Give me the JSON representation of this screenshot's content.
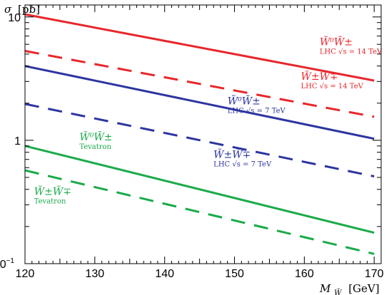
{
  "chart_data": {
    "type": "line",
    "x_axis": {
      "label_symbol": "M",
      "label_subscript": "W̃",
      "label_unit": "[GeV]",
      "ticks": [
        "120",
        "130",
        "140",
        "150",
        "160",
        "170"
      ],
      "range": [
        120,
        171
      ]
    },
    "y_axis": {
      "label_symbol": "σ",
      "label_unit": "[pb]",
      "scale": "log",
      "ticks": [
        {
          "value": 0.1,
          "label": "10",
          "sup": "−1"
        },
        {
          "value": 1,
          "label": "1",
          "sup": ""
        },
        {
          "value": 10,
          "label": "10",
          "sup": ""
        }
      ],
      "range": [
        0.1,
        12.5
      ]
    },
    "grid": false,
    "legend": "none",
    "series": [
      {
        "color": "#e8262b",
        "dash": "solid",
        "x": [
          120,
          170
        ],
        "y": [
          10.5,
          3.05
        ]
      },
      {
        "color": "#e8262b",
        "dash": "dashed",
        "x": [
          120,
          170
        ],
        "y": [
          5.3,
          1.55
        ]
      },
      {
        "color": "#2d35a0",
        "dash": "solid",
        "x": [
          120,
          170
        ],
        "y": [
          4.0,
          1.03
        ]
      },
      {
        "color": "#2d35a0",
        "dash": "dashed",
        "x": [
          120,
          170
        ],
        "y": [
          1.97,
          0.51
        ]
      },
      {
        "color": "#1aab4a",
        "dash": "solid",
        "x": [
          120,
          170
        ],
        "y": [
          0.9,
          0.178
        ]
      },
      {
        "color": "#1aab4a",
        "dash": "dashed",
        "x": [
          120,
          170
        ],
        "y": [
          0.57,
          0.12
        ]
      }
    ],
    "annotations": [
      {
        "main": "W̃⁰W̃±",
        "sub": "LHC √s = 14 TeV",
        "color": "#e8262b",
        "x": 162.2,
        "y": 5.9
      },
      {
        "main": "W̃±W̃∓",
        "sub": "LHC √s = 14 TeV",
        "color": "#e8262b",
        "x": 159.5,
        "y": 3.1
      },
      {
        "main": "W̃⁰W̃±",
        "sub": "LHC √s = 7 TeV",
        "color": "#2d35a0",
        "x": 149.0,
        "y": 1.95
      },
      {
        "main": "W̃±W̃∓",
        "sub": "LHC √s = 7 TeV",
        "color": "#2d35a0",
        "x": 147.0,
        "y": 0.72
      },
      {
        "main": "W̃⁰W̃±",
        "sub": "Tevatron",
        "color": "#1aab4a",
        "x": 127.8,
        "y": 1.0
      },
      {
        "main": "W̃±W̃∓",
        "sub": "Tevatron",
        "color": "#1aab4a",
        "x": 121.3,
        "y": 0.36
      }
    ]
  }
}
